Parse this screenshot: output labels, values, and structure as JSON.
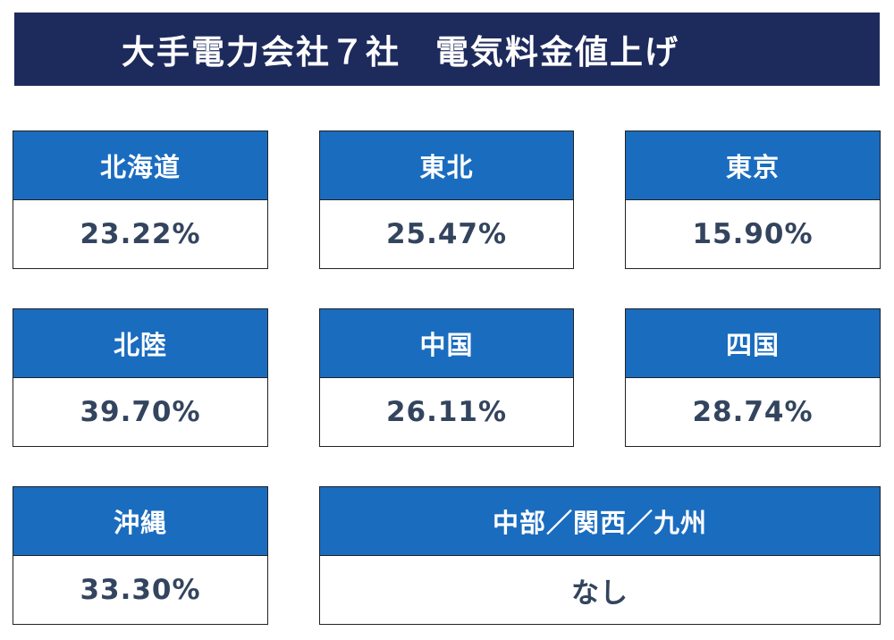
{
  "title": "大手電力会社７社　電気料金値上げ",
  "colors": {
    "title_bg": "#1d2a5c",
    "header_bg": "#1a6cbf",
    "value_text": "#33445e"
  },
  "companies": [
    {
      "name": "北海道",
      "value": "23.22%"
    },
    {
      "name": "東北",
      "value": "25.47%"
    },
    {
      "name": "東京",
      "value": "15.90%"
    },
    {
      "name": "北陸",
      "value": "39.70%"
    },
    {
      "name": "中国",
      "value": "26.11%"
    },
    {
      "name": "四国",
      "value": "28.74%"
    },
    {
      "name": "沖縄",
      "value": "33.30%"
    },
    {
      "name": "中部／関西／九州",
      "value": "なし"
    }
  ]
}
